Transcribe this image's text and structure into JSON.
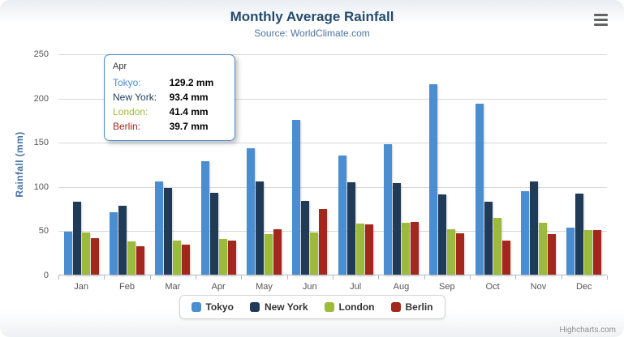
{
  "chart_data": {
    "type": "bar",
    "title": "Monthly Average Rainfall",
    "subtitle": "Source: WorldClimate.com",
    "xlabel": "",
    "ylabel": "Rainfall (mm)",
    "ylim": [
      0,
      250
    ],
    "yticks": [
      0,
      50,
      100,
      150,
      200,
      250
    ],
    "grid": true,
    "legend_position": "bottom",
    "categories": [
      "Jan",
      "Feb",
      "Mar",
      "Apr",
      "May",
      "Jun",
      "Jul",
      "Aug",
      "Sep",
      "Oct",
      "Nov",
      "Dec"
    ],
    "series": [
      {
        "name": "Tokyo",
        "color": "#4A8DD1",
        "values": [
          49.9,
          71.5,
          106.4,
          129.2,
          144.0,
          176.0,
          135.6,
          148.5,
          216.4,
          194.1,
          95.6,
          54.4
        ]
      },
      {
        "name": "New York",
        "color": "#1F3B57",
        "values": [
          83.6,
          78.8,
          98.5,
          93.4,
          106.0,
          84.5,
          105.0,
          104.3,
          91.2,
          83.5,
          106.6,
          92.3
        ]
      },
      {
        "name": "London",
        "color": "#9CBB3C",
        "values": [
          48.9,
          38.8,
          39.3,
          41.4,
          47.0,
          48.3,
          59.0,
          59.6,
          52.4,
          65.2,
          59.3,
          51.2
        ]
      },
      {
        "name": "Berlin",
        "color": "#A3271D",
        "values": [
          42.4,
          33.2,
          34.5,
          39.7,
          52.6,
          75.5,
          57.4,
          60.4,
          47.6,
          39.1,
          46.8,
          51.1
        ]
      }
    ]
  },
  "tooltip": {
    "header": "Apr",
    "unit": "mm",
    "rows": [
      {
        "name": "Tokyo",
        "value": "129.2"
      },
      {
        "name": "New York",
        "value": "93.4"
      },
      {
        "name": "London",
        "value": "41.4"
      },
      {
        "name": "Berlin",
        "value": "39.7"
      }
    ]
  },
  "menu": {
    "icon": "hamburger-icon"
  },
  "credits": "Highcharts.com"
}
